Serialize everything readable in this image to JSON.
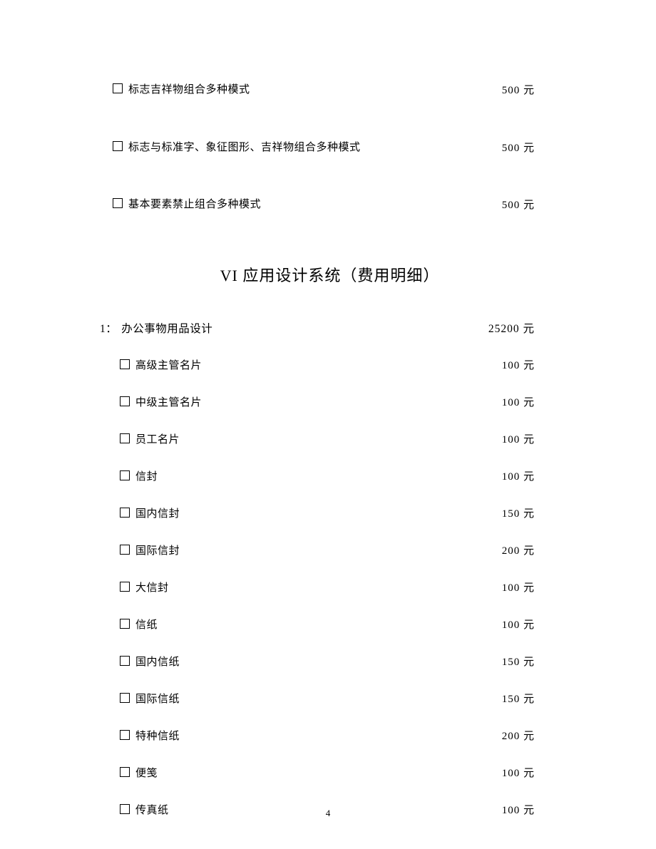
{
  "currency": "元",
  "topItems": [
    {
      "label": "标志吉祥物组合多种模式",
      "price": "500"
    },
    {
      "label": "标志与标准字、象征图形、吉祥物组合多种模式",
      "price": "500"
    },
    {
      "label": "基本要素禁止组合多种模式",
      "price": "500"
    }
  ],
  "sectionTitle": "VI 应用设计系统（费用明细）",
  "category": {
    "num": "1：",
    "label": "办公事物用品设计",
    "total": "25200"
  },
  "subItems": [
    {
      "label": "高级主管名片",
      "price": "100"
    },
    {
      "label": "中级主管名片",
      "price": "100"
    },
    {
      "label": "员工名片",
      "price": "100"
    },
    {
      "label": "信封",
      "price": "100"
    },
    {
      "label": "国内信封",
      "price": "150"
    },
    {
      "label": "国际信封",
      "price": "200"
    },
    {
      "label": "大信封",
      "price": "100"
    },
    {
      "label": "信纸",
      "price": "100"
    },
    {
      "label": "国内信纸",
      "price": "150"
    },
    {
      "label": "国际信纸",
      "price": "150"
    },
    {
      "label": "特种信纸",
      "price": "200"
    },
    {
      "label": "便笺",
      "price": "100"
    },
    {
      "label": "传真纸",
      "price": "100"
    }
  ],
  "pageNumber": "4"
}
